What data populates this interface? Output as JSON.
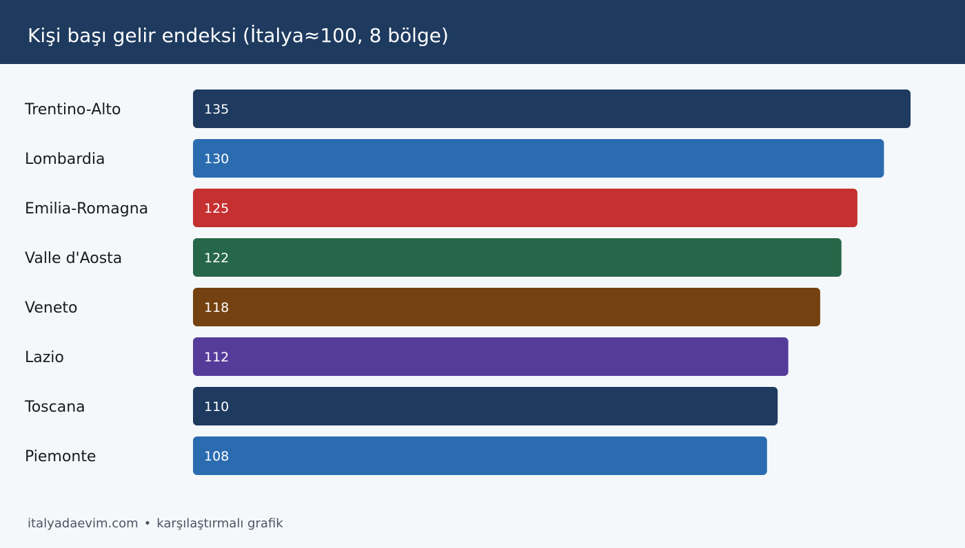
{
  "header": {
    "title": "Kişi başı gelir endeksi (İtalya≈100, 8 bölge)"
  },
  "chart_data": {
    "type": "bar",
    "orientation": "horizontal",
    "title": "Kişi başı gelir endeksi (İtalya≈100, 8 bölge)",
    "categories": [
      "Trentino-Alto",
      "Lombardia",
      "Emilia-Romagna",
      "Valle d'Aosta",
      "Veneto",
      "Lazio",
      "Toscana",
      "Piemonte"
    ],
    "values": [
      135,
      130,
      125,
      122,
      118,
      112,
      110,
      108
    ],
    "colors": [
      "#1e3a5f",
      "#2b6cb0",
      "#c53030",
      "#276749",
      "#744210",
      "#553c9a",
      "#1e3a5f",
      "#2b6cb0"
    ],
    "xlim": [
      0,
      135
    ],
    "grid": false,
    "legend": "none"
  },
  "footer": {
    "site": "italyadaevim.com",
    "separator": "•",
    "caption": "karşılaştırmalı grafik"
  }
}
